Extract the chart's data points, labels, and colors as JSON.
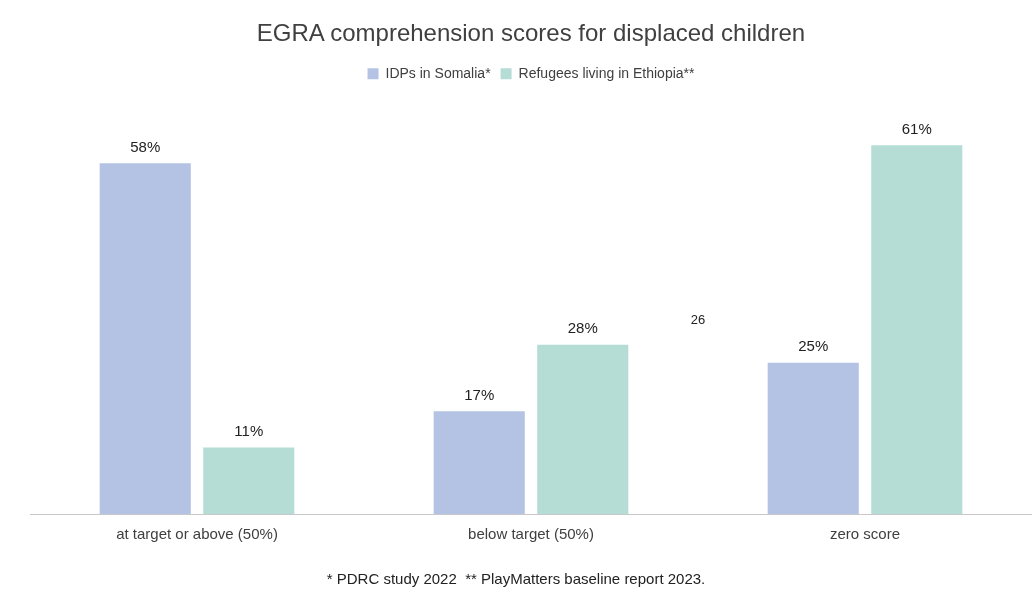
{
  "chart_data": {
    "type": "bar",
    "title": "EGRA comprehension scores for displaced children",
    "categories": [
      "at target or above (50%)",
      "below target (50%)",
      "zero score"
    ],
    "series": [
      {
        "name": "IDPs in Somalia*",
        "color": "#b4c3e4",
        "values": [
          58,
          17,
          25
        ],
        "value_labels": [
          "58%",
          "17%",
          "25%"
        ]
      },
      {
        "name": "Refugees living in Ethiopia**",
        "color": "#b5ddd5",
        "values": [
          11,
          28,
          61
        ],
        "value_labels": [
          "11%",
          "28%",
          "61%"
        ]
      }
    ],
    "legend": "top",
    "grid": false,
    "annotations": [
      "* PDRC study 2022  ** PlayMatters baseline report 2023.",
      "26"
    ]
  }
}
